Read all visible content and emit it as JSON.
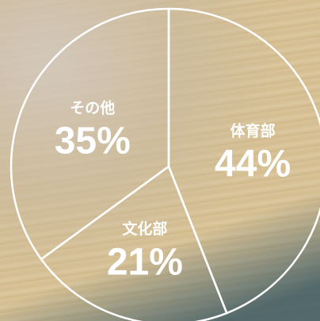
{
  "chart_data": {
    "type": "pie",
    "categories": [
      "体育部",
      "文化部",
      "その他"
    ],
    "values": [
      44,
      21,
      35
    ],
    "value_labels": [
      "44%",
      "21%",
      "35%"
    ],
    "color": "#ffffff"
  }
}
